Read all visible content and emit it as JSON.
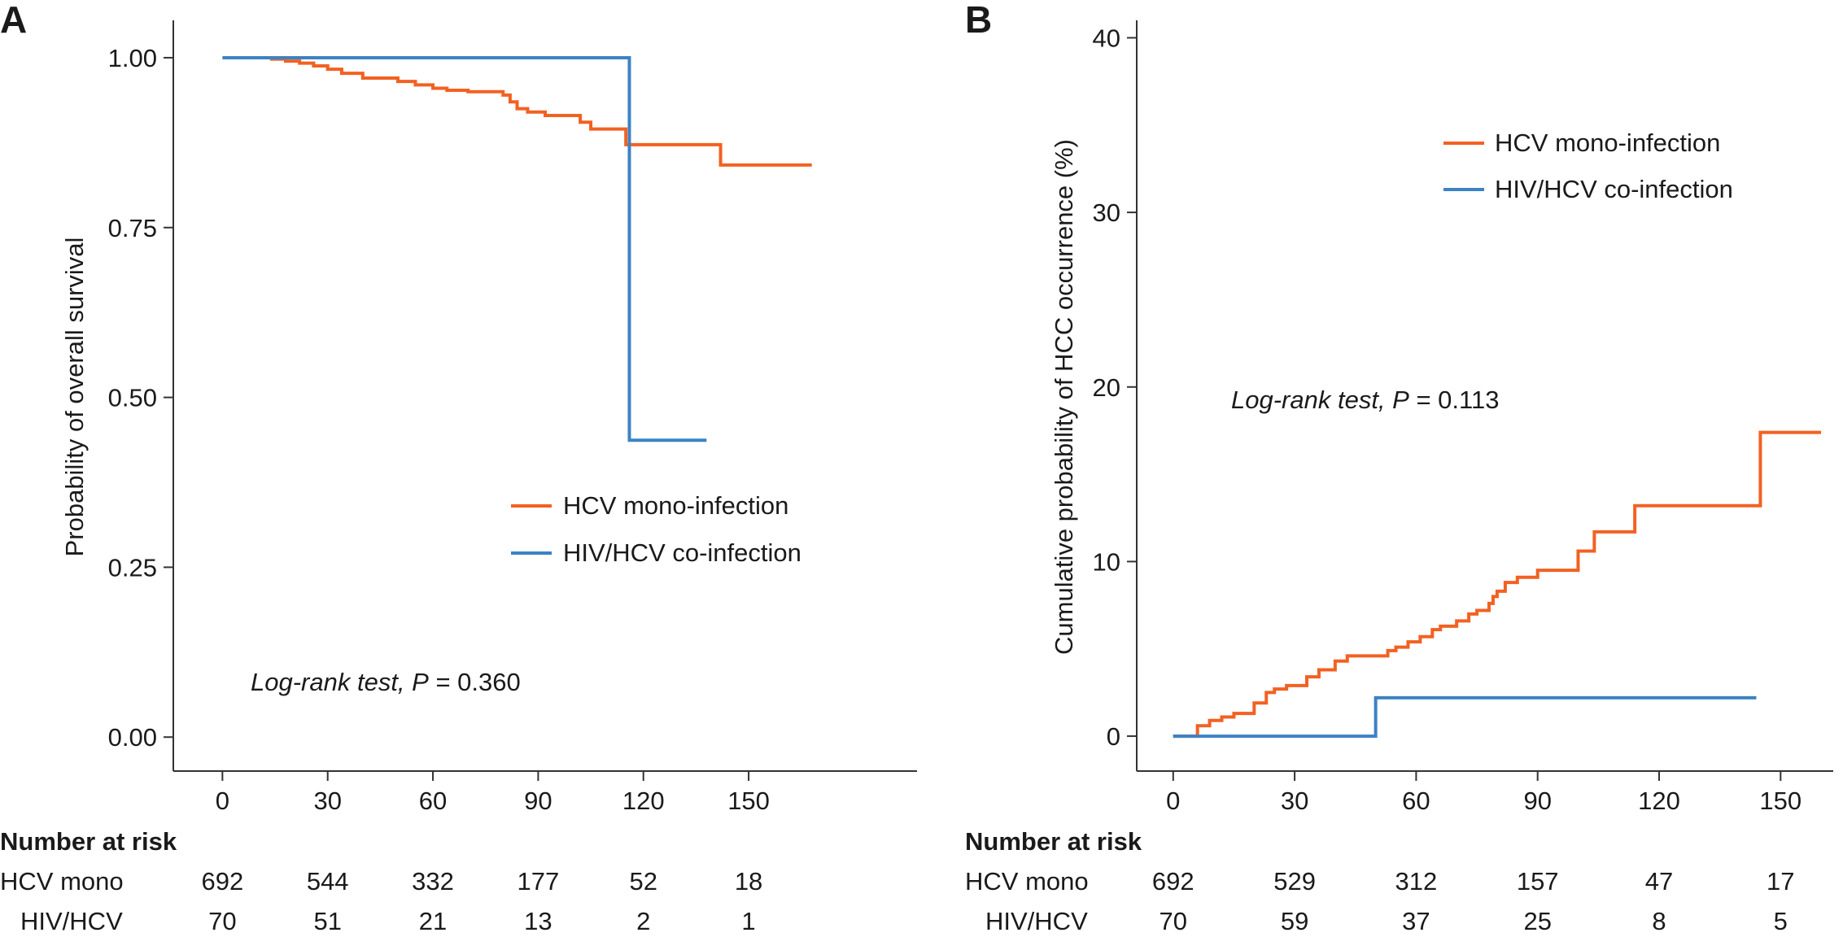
{
  "chart_data": [
    {
      "panel_label": "A",
      "type": "line",
      "step": true,
      "xlabel": "",
      "ylabel": "Probability of overall survival",
      "xlim": [
        -14,
        198
      ],
      "ylim": [
        -0.05,
        1.055
      ],
      "xticks": [
        0,
        30,
        60,
        90,
        120,
        150
      ],
      "yticks": [
        0.0,
        0.25,
        0.5,
        0.75,
        1.0
      ],
      "ytick_labels": [
        "0.00",
        "0.25",
        "0.50",
        "0.75",
        "1.00"
      ],
      "legend_position": "middle-right",
      "annotation": {
        "italic": "Log-rank test, P",
        "rest": " = 0.360"
      },
      "series": [
        {
          "name": "HCV mono-infection",
          "color": "#f26122",
          "x": [
            7,
            14,
            18,
            22,
            26,
            30,
            34,
            40,
            50,
            55,
            60,
            64,
            70,
            75,
            80,
            82,
            84,
            87,
            92,
            100,
            102,
            105,
            113,
            115,
            120,
            125,
            130,
            135,
            141,
            142,
            168
          ],
          "y": [
            1.0,
            0.998,
            0.995,
            0.992,
            0.988,
            0.983,
            0.977,
            0.97,
            0.965,
            0.96,
            0.955,
            0.952,
            0.95,
            0.95,
            0.945,
            0.935,
            0.925,
            0.92,
            0.915,
            0.915,
            0.905,
            0.895,
            0.895,
            0.872,
            0.872,
            0.872,
            0.872,
            0.872,
            0.872,
            0.842,
            0.842
          ]
        },
        {
          "name": "HIV/HCV co-infection",
          "color": "#3c82c4",
          "x": [
            0,
            116,
            116,
            138
          ],
          "y": [
            1.0,
            1.0,
            0.437,
            0.437
          ]
        }
      ],
      "risk_table": {
        "title": "Number at risk",
        "rows": [
          {
            "label": "HCV mono",
            "values": [
              "692",
              "544",
              "332",
              "177",
              "52",
              "18"
            ]
          },
          {
            "label": "HIV/HCV",
            "values": [
              "70",
              "51",
              "21",
              "13",
              "2",
              "1"
            ]
          }
        ]
      }
    },
    {
      "panel_label": "B",
      "type": "line",
      "step": true,
      "xlabel": "",
      "ylabel": "Cumulative probability of HCC occurrence (%)",
      "xlim": [
        -9,
        163
      ],
      "ylim": [
        -2,
        41
      ],
      "xticks": [
        0,
        30,
        60,
        90,
        120,
        150
      ],
      "yticks": [
        0,
        10,
        20,
        30,
        40
      ],
      "ytick_labels": [
        "0",
        "10",
        "20",
        "30",
        "40"
      ],
      "legend_position": "top-right",
      "annotation": {
        "italic": "Log-rank test, P",
        "rest": " = 0.113"
      },
      "series": [
        {
          "name": "HCV mono-infection",
          "color": "#f26122",
          "x": [
            5,
            6,
            9,
            12,
            15,
            20,
            23,
            25,
            28,
            33,
            36,
            40,
            43,
            45,
            53,
            55,
            58,
            61,
            64,
            66,
            70,
            73,
            75,
            78,
            79,
            80,
            82,
            85,
            90,
            100,
            104,
            105,
            114,
            116,
            145,
            147,
            160
          ],
          "y": [
            0,
            0.6,
            0.9,
            1.1,
            1.3,
            1.9,
            2.5,
            2.7,
            2.9,
            3.4,
            3.8,
            4.3,
            4.6,
            4.6,
            4.9,
            5.1,
            5.4,
            5.7,
            6.1,
            6.3,
            6.6,
            7.0,
            7.2,
            7.6,
            8.0,
            8.3,
            8.8,
            9.1,
            9.5,
            10.6,
            11.7,
            11.7,
            13.2,
            13.2,
            17.4,
            17.4,
            17.4
          ],
          "start_x": 0
        },
        {
          "name": "HIV/HCV co-infection",
          "color": "#3c82c4",
          "x": [
            0,
            50,
            50,
            144
          ],
          "y": [
            0,
            0,
            2.2,
            2.2
          ]
        }
      ],
      "risk_table": {
        "title": "Number at risk",
        "rows": [
          {
            "label": "HCV mono",
            "values": [
              "692",
              "529",
              "312",
              "157",
              "47",
              "17"
            ]
          },
          {
            "label": "HIV/HCV",
            "values": [
              "70",
              "59",
              "37",
              "25",
              "8",
              "5"
            ]
          }
        ]
      }
    }
  ]
}
